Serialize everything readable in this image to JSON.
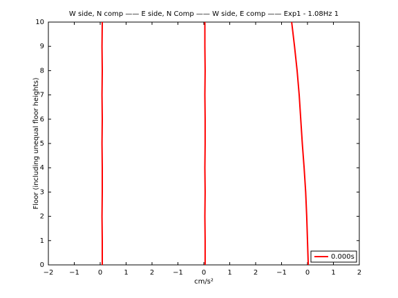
{
  "chart_data": {
    "type": "line",
    "title": "W side, N comp —— E side, N Comp —— W side, E comp —— Exp1 - 1.08Hz 1",
    "xlabel": "cm/s²",
    "ylabel": "Floor (including unequal floor heights)",
    "y": [
      0,
      1,
      2,
      3,
      4,
      5,
      6,
      7,
      8,
      9,
      10
    ],
    "series": [
      {
        "color": "#ff0000",
        "values": [
          2.08,
          2.08,
          2.07,
          2.08,
          2.08,
          2.07,
          2.08,
          2.07,
          2.08,
          2.07,
          2.08
        ]
      },
      {
        "color": "#ff0000",
        "values": [
          6.05,
          6.05,
          6.04,
          6.05,
          6.04,
          6.05,
          6.05,
          6.04,
          6.05,
          6.04,
          6.04
        ]
      },
      {
        "color": "#ff0000",
        "values": [
          10.03,
          10.0,
          9.97,
          9.93,
          9.87,
          9.8,
          9.74,
          9.68,
          9.6,
          9.5,
          9.39
        ]
      }
    ],
    "legend": {
      "label": "0.000s",
      "color": "#ff0000",
      "location": "southeast"
    },
    "xlim": [
      0,
      12
    ],
    "xticks": [
      {
        "value": 0,
        "label": "−2"
      },
      {
        "value": 1,
        "label": "−1"
      },
      {
        "value": 2,
        "label": "0"
      },
      {
        "value": 3,
        "label": "1"
      },
      {
        "value": 4,
        "label": "2"
      },
      {
        "value": 5,
        "label": "−1"
      },
      {
        "value": 6,
        "label": "0"
      },
      {
        "value": 7,
        "label": "1"
      },
      {
        "value": 8,
        "label": "2"
      },
      {
        "value": 9,
        "label": "−1"
      },
      {
        "value": 10,
        "label": "0"
      },
      {
        "value": 11,
        "label": "1"
      },
      {
        "value": 12,
        "label": "2"
      }
    ],
    "ylim": [
      0,
      10
    ],
    "yticks": [
      0,
      1,
      2,
      3,
      4,
      5,
      6,
      7,
      8,
      9,
      10
    ]
  }
}
